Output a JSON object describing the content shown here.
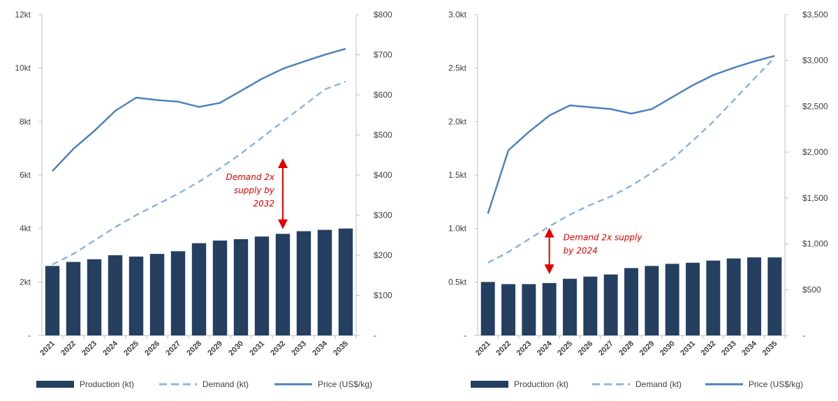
{
  "colors": {
    "production": "#243f60",
    "demand": "#8db4e2",
    "price": "#4f81bd",
    "annotation": "#e00000",
    "axis": "#bfbfbf",
    "text": "#404040"
  },
  "chart_data": [
    {
      "type": "bar",
      "title": "",
      "categories": [
        "2021",
        "2022",
        "2023",
        "2024",
        "2025",
        "2026",
        "2027",
        "2028",
        "2029",
        "2030",
        "2031",
        "2032",
        "2033",
        "2034",
        "2035"
      ],
      "left_axis": {
        "ylim": [
          0,
          12
        ],
        "ticks": [
          0,
          2,
          4,
          6,
          8,
          10,
          12
        ],
        "tick_labels": [
          "-",
          "2kt",
          "4kt",
          "6kt",
          "8kt",
          "10kt",
          "12kt"
        ]
      },
      "right_axis": {
        "ylim": [
          0,
          800
        ],
        "ticks": [
          0,
          100,
          200,
          300,
          400,
          500,
          600,
          700,
          800
        ],
        "tick_labels": [
          "-",
          "$100",
          "$200",
          "$300",
          "$400",
          "$500",
          "$600",
          "$700",
          "$800"
        ]
      },
      "series": [
        {
          "name": "Production (kt)",
          "type": "bar",
          "axis": "left",
          "values": [
            2.6,
            2.75,
            2.85,
            3.0,
            2.95,
            3.05,
            3.15,
            3.45,
            3.55,
            3.6,
            3.7,
            3.8,
            3.9,
            3.95,
            4.0
          ]
        },
        {
          "name": "Demand (kt)",
          "type": "line",
          "style": "dashed",
          "axis": "left",
          "values": [
            2.65,
            3.05,
            3.55,
            4.05,
            4.5,
            4.9,
            5.3,
            5.75,
            6.25,
            6.8,
            7.4,
            8.0,
            8.6,
            9.2,
            9.5
          ]
        },
        {
          "name": "Price (US$/kg)",
          "type": "line",
          "style": "solid",
          "axis": "right",
          "values": [
            410,
            465,
            510,
            560,
            593,
            587,
            583,
            570,
            580,
            610,
            640,
            665,
            683,
            700,
            715
          ]
        }
      ],
      "annotation": {
        "lines": [
          "Demand 2x",
          "supply by",
          "2032"
        ],
        "at": "2032",
        "from": 4.0,
        "to": 6.6
      },
      "legend": [
        "Production (kt)",
        "Demand (kt)",
        "Price (US$/kg)"
      ]
    },
    {
      "type": "bar",
      "title": "",
      "categories": [
        "2021",
        "2022",
        "2023",
        "2024",
        "2025",
        "2026",
        "2027",
        "2028",
        "2029",
        "2030",
        "2031",
        "2032",
        "2033",
        "2034",
        "2035"
      ],
      "left_axis": {
        "ylim": [
          0,
          3.0
        ],
        "ticks": [
          0,
          0.5,
          1.0,
          1.5,
          2.0,
          2.5,
          3.0
        ],
        "tick_labels": [
          "-",
          "0.5kt",
          "1.0kt",
          "1.5kt",
          "2.0kt",
          "2.5kt",
          "3.0kt"
        ]
      },
      "right_axis": {
        "ylim": [
          0,
          3500
        ],
        "ticks": [
          0,
          500,
          1000,
          1500,
          2000,
          2500,
          3000,
          3500
        ],
        "tick_labels": [
          "-",
          "$500",
          "$1,000",
          "$1,500",
          "$2,000",
          "$2,500",
          "$3,000",
          "$3,500"
        ]
      },
      "series": [
        {
          "name": "Production (kt)",
          "type": "bar",
          "axis": "left",
          "values": [
            0.5,
            0.48,
            0.48,
            0.49,
            0.53,
            0.55,
            0.57,
            0.63,
            0.65,
            0.67,
            0.68,
            0.7,
            0.72,
            0.73,
            0.73
          ]
        },
        {
          "name": "Demand (kt)",
          "type": "line",
          "style": "dashed",
          "axis": "left",
          "values": [
            0.68,
            0.78,
            0.9,
            1.02,
            1.13,
            1.22,
            1.3,
            1.4,
            1.52,
            1.65,
            1.82,
            2.0,
            2.2,
            2.4,
            2.6
          ]
        },
        {
          "name": "Price (US$/kg)",
          "type": "line",
          "style": "solid",
          "axis": "right",
          "values": [
            1330,
            2020,
            2220,
            2400,
            2510,
            2490,
            2470,
            2420,
            2470,
            2600,
            2730,
            2840,
            2920,
            2990,
            3050
          ]
        }
      ],
      "annotation": {
        "lines": [
          "Demand 2x supply",
          "by 2024"
        ],
        "at": "2024",
        "from": 0.58,
        "to": 1.0
      },
      "legend": [
        "Production (kt)",
        "Demand (kt)",
        "Price (US$/kg)"
      ]
    }
  ]
}
